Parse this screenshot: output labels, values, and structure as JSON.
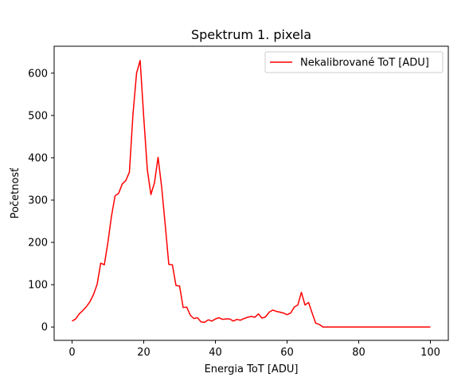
{
  "chart_data": {
    "type": "line",
    "title": "Spektrum 1. pixela",
    "xlabel": "Energia ToT [ADU]",
    "ylabel": "Početnosť",
    "xlim": [
      -5,
      105
    ],
    "ylim": [
      -31.6,
      663.6
    ],
    "xticks": [
      0,
      20,
      40,
      60,
      80,
      100
    ],
    "yticks": [
      0,
      100,
      200,
      300,
      400,
      500,
      600
    ],
    "grid": false,
    "legend_position": "top-right",
    "series": [
      {
        "name": "Nekalibrované ToT [ADU]",
        "color": "#ff0000",
        "x": [
          0,
          1,
          2,
          3,
          4,
          5,
          6,
          7,
          8,
          9,
          10,
          11,
          12,
          13,
          14,
          15,
          16,
          17,
          18,
          19,
          20,
          21,
          22,
          23,
          24,
          25,
          26,
          27,
          28,
          29,
          30,
          31,
          32,
          33,
          34,
          35,
          36,
          37,
          38,
          39,
          40,
          41,
          42,
          43,
          44,
          45,
          46,
          47,
          48,
          49,
          50,
          51,
          52,
          53,
          54,
          55,
          56,
          57,
          58,
          59,
          60,
          61,
          62,
          63,
          64,
          65,
          66,
          67,
          68,
          69,
          70,
          71,
          72,
          73,
          74,
          75,
          76,
          77,
          78,
          79,
          80,
          81,
          82,
          83,
          84,
          85,
          86,
          87,
          88,
          89,
          90,
          91,
          92,
          93,
          94,
          95,
          96,
          97,
          98,
          99,
          100
        ],
        "y": [
          14,
          19,
          31,
          39,
          48,
          60,
          77,
          101,
          151,
          147,
          200,
          262,
          310,
          316,
          338,
          346,
          366,
          503,
          600,
          630,
          496,
          372,
          313,
          341,
          401,
          331,
          241,
          148,
          147,
          98,
          97,
          46,
          47,
          28,
          20,
          22,
          12,
          11,
          17,
          14,
          19,
          22,
          18,
          19,
          19,
          14,
          18,
          16,
          20,
          23,
          25,
          23,
          31,
          21,
          24,
          35,
          40,
          37,
          35,
          33,
          29,
          33,
          47,
          52,
          82,
          52,
          58,
          33,
          9,
          6,
          0,
          0,
          0,
          0,
          0,
          0,
          0,
          0,
          0,
          0,
          0,
          0,
          0,
          0,
          0,
          0,
          0,
          0,
          0,
          0,
          0,
          0,
          0,
          0,
          0,
          0,
          0,
          0,
          0,
          0,
          0
        ]
      }
    ]
  }
}
